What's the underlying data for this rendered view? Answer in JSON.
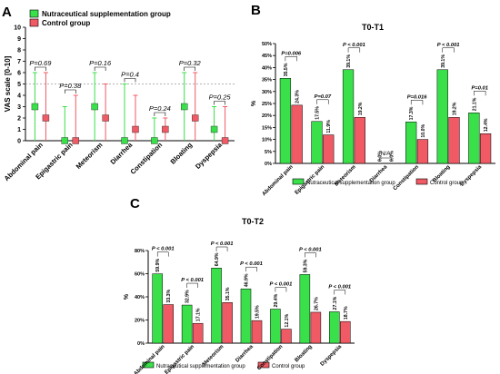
{
  "panels": [
    {
      "id": "A",
      "letter": "A",
      "title": ""
    },
    {
      "id": "B",
      "letter": "B",
      "title": "T0-T1"
    },
    {
      "id": "C",
      "letter": "C",
      "title": "T0-T2"
    }
  ],
  "legend": {
    "supplement": "Nutraceutical supplementation group",
    "control": "Control group"
  },
  "colors": {
    "supplement": "#39e04a",
    "control": "#ef5a64",
    "axis": "#000000"
  },
  "chart_data": [
    {
      "panel": "A",
      "type": "scatter",
      "title": "",
      "xlabel": "",
      "ylabel": "VAS scale [0-10]",
      "ylim": [
        0,
        10
      ],
      "yticks": [
        0,
        1,
        2,
        3,
        4,
        5,
        6,
        7,
        8,
        9,
        10
      ],
      "reference_line": 5,
      "categories": [
        "Abdominal pain",
        "Epigastric pain",
        "Meteorism",
        "Diarrhea",
        "Constipation",
        "Bloating",
        "Dyspepsia"
      ],
      "p_values": [
        "P=0.69",
        "P=0.38",
        "P=0.16",
        "P=0.4",
        "P=0.24",
        "P=0.32",
        "P=0.25"
      ],
      "series": [
        {
          "name": "Nutraceutical supplementation group",
          "median": [
            3,
            0,
            3,
            0,
            0,
            3,
            1
          ],
          "low": [
            0,
            0,
            0,
            0,
            0,
            0,
            0
          ],
          "high": [
            6,
            3,
            6,
            5,
            2,
            6,
            3
          ]
        },
        {
          "name": "Control group",
          "median": [
            2,
            0,
            2,
            1,
            1,
            2,
            0
          ],
          "low": [
            0,
            0,
            0,
            0,
            0,
            0,
            0
          ],
          "high": [
            6,
            4,
            5,
            4,
            2,
            6,
            3
          ]
        }
      ]
    },
    {
      "panel": "B",
      "type": "bar",
      "title": "T0-T1",
      "xlabel": "",
      "ylabel": "%",
      "ylim": [
        0,
        50
      ],
      "yticks": [
        0,
        5,
        10,
        15,
        20,
        25,
        30,
        35,
        40,
        45,
        50
      ],
      "tick_format": "percent",
      "categories": [
        "Abdominal pain",
        "Epigastric pain",
        "Meteorism",
        "Diarrhea",
        "Constipation",
        "Bloating",
        "Dyspepsia"
      ],
      "p_values": [
        "P=0.006",
        "P=0.07",
        "P < 0.001",
        "N/A",
        "P=0.016",
        "P < 0.001",
        "P=0.01"
      ],
      "series": [
        {
          "name": "Nutraceutical supplementation group",
          "values": [
            35.5,
            17.5,
            39.1,
            0.0,
            17.3,
            39.1,
            21.1
          ],
          "labels": [
            "35.5%",
            "17.5%",
            "39.1%",
            "0.0%",
            "17.3%",
            "39.1%",
            "21.1%"
          ]
        },
        {
          "name": "Control group",
          "values": [
            24.3,
            11.9,
            19.2,
            0.0,
            10.0,
            19.2,
            12.4
          ],
          "labels": [
            "24.3%",
            "11.9%",
            "19.2%",
            "0.0%",
            "10.0%",
            "19.2%",
            "12.4%"
          ]
        }
      ]
    },
    {
      "panel": "C",
      "type": "bar",
      "title": "T0-T2",
      "xlabel": "",
      "ylabel": "%",
      "ylim": [
        0,
        80
      ],
      "yticks": [
        0,
        20,
        40,
        60,
        80
      ],
      "tick_format": "percent",
      "categories": [
        "Abdominal pain",
        "Epigastric pain",
        "Meteorism",
        "Diarrhea",
        "Constipation",
        "Bloating",
        "Dyspepsia"
      ],
      "p_values": [
        "P < 0.001",
        "P < 0.001",
        "P < 0.001",
        "P < 0.001",
        "P < 0.001",
        "P < 0.001",
        "P < 0.001"
      ],
      "series": [
        {
          "name": "Nutraceutical supplementation group",
          "values": [
            59.9,
            32.9,
            64.9,
            46.9,
            29.4,
            59.3,
            27.1
          ],
          "labels": [
            "59.9%",
            "32.9%",
            "64.9%",
            "46.9%",
            "29.4%",
            "59.3%",
            "27.1%"
          ]
        },
        {
          "name": "Control group",
          "values": [
            33.3,
            17.1,
            35.1,
            19.5,
            12.1,
            26.7,
            18.7
          ],
          "labels": [
            "33.3%",
            "17.1%",
            "35.1%",
            "19.5%",
            "12.1%",
            "26.7%",
            "18.7%"
          ]
        }
      ]
    }
  ]
}
